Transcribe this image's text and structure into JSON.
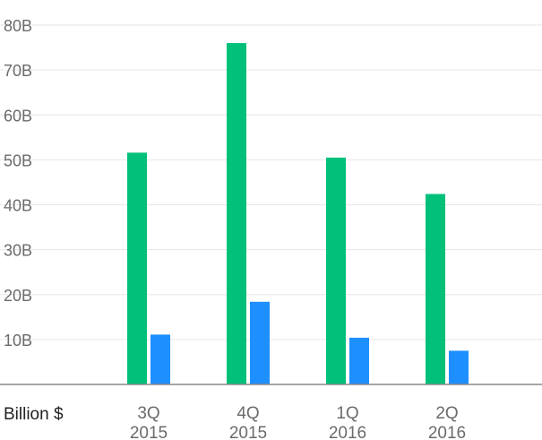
{
  "chart_data": {
    "type": "bar",
    "categories": [
      [
        "3Q",
        "2015"
      ],
      [
        "4Q",
        "2015"
      ],
      [
        "1Q",
        "2016"
      ],
      [
        "2Q",
        "2016"
      ]
    ],
    "series": [
      {
        "color": "#00c07a",
        "values": [
          51.6,
          76.0,
          50.5,
          42.4
        ]
      },
      {
        "color": "#1e8fff",
        "values": [
          11.1,
          18.4,
          10.4,
          7.5
        ]
      }
    ],
    "ylim": [
      0,
      80
    ],
    "yticks": [
      "10B",
      "20B",
      "30B",
      "40B",
      "50B",
      "60B",
      "70B",
      "80B"
    ],
    "ytick_values": [
      10,
      20,
      30,
      40,
      50,
      60,
      70,
      80
    ],
    "unit_label": "Billion $",
    "grid": true,
    "title": "",
    "xlabel": "",
    "ylabel": ""
  }
}
